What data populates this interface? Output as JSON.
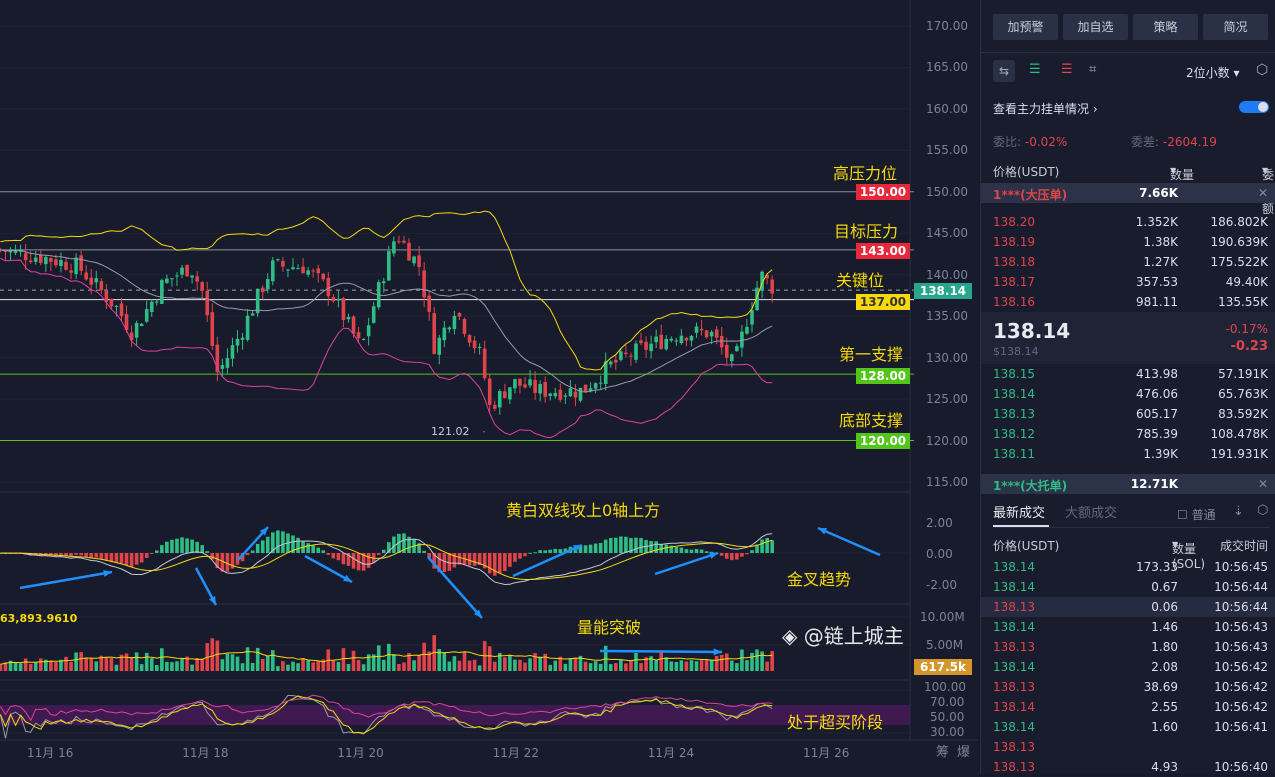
{
  "chart": {
    "price_axis": [
      "170.00",
      "165.00",
      "160.00",
      "155.00",
      "150.00",
      "145.00",
      "140.00",
      "135.00",
      "130.00",
      "125.00",
      "120.00",
      "115.00"
    ],
    "price_ticks": [
      170,
      165,
      160,
      155,
      150,
      145,
      140,
      135,
      130,
      125,
      120,
      115
    ],
    "date_labels": [
      "11月 16",
      "11月 18",
      "11月 20",
      "11月 22",
      "11月 24",
      "11月 26"
    ],
    "date_days": [
      16,
      18,
      20,
      22,
      24,
      26
    ],
    "levels": [
      {
        "price": 150,
        "label": "150.00",
        "note": "高压力位",
        "color": "#e8283a"
      },
      {
        "price": 143,
        "label": "143.00",
        "note": "目标压力",
        "color": "#e8283a"
      },
      {
        "price": 137,
        "label": "137.00",
        "note": "关键位",
        "color": "#f5d90a"
      },
      {
        "price": 128,
        "label": "128.00",
        "note": "第一支撑",
        "color": "#52c41a"
      },
      {
        "price": 120,
        "label": "120.00",
        "note": "底部支撑",
        "color": "#52c41a"
      }
    ],
    "last_price": "138.14",
    "last_price_value": 138.14,
    "low_marker": "121.02",
    "price_waypoints": [
      [
        15.4,
        143
      ],
      [
        16.0,
        142
      ],
      [
        16.4,
        141
      ],
      [
        16.9,
        136
      ],
      [
        17.1,
        133
      ],
      [
        17.5,
        139
      ],
      [
        17.85,
        141
      ],
      [
        18.0,
        138
      ],
      [
        18.2,
        128
      ],
      [
        18.5,
        133
      ],
      [
        18.9,
        141
      ],
      [
        19.3,
        141
      ],
      [
        19.65,
        138
      ],
      [
        20.05,
        131
      ],
      [
        20.2,
        136
      ],
      [
        20.5,
        145
      ],
      [
        20.8,
        141
      ],
      [
        21.0,
        131
      ],
      [
        21.25,
        136
      ],
      [
        21.6,
        130
      ],
      [
        21.7,
        124
      ],
      [
        22.0,
        127
      ],
      [
        22.35,
        126
      ],
      [
        22.9,
        126
      ],
      [
        23.25,
        129
      ],
      [
        23.65,
        131
      ],
      [
        24.15,
        133
      ],
      [
        24.55,
        133
      ],
      [
        24.85,
        129
      ],
      [
        25.0,
        134
      ],
      [
        25.2,
        140
      ],
      [
        25.4,
        138
      ]
    ],
    "macd_axis": [
      "2.00",
      "0.00",
      "-2.00"
    ],
    "volume_axis": [
      "10.00M",
      "5.00M"
    ],
    "volume_value": "617.5k",
    "volume_ma_label": "63,893.9610",
    "rsi_axis": [
      "100.00",
      "70.00",
      "50.00",
      "30.00"
    ],
    "annotations": {
      "macd": "黄白双线攻上0轴上方",
      "golden": "金叉趋势",
      "volume": "量能突破",
      "rsi": "处于超买阶段"
    },
    "corner": [
      "筹",
      "爆"
    ]
  },
  "side": {
    "buttons": [
      "加预警",
      "加自选",
      "策略",
      "简况"
    ],
    "decimals": "2位小数",
    "main_orders": "查看主力挂单情况",
    "ratio_label": "委比:",
    "ratio": "-0.02%",
    "diff_label": "委差:",
    "diff": "-2604.19",
    "cols": [
      "价格(USDT)",
      "数量 (SOL)",
      "委托额"
    ],
    "big_ask": {
      "label": "1***(大压单)",
      "qty": "7.66K"
    },
    "asks": [
      [
        "138.20",
        "1.352K",
        "186.802K"
      ],
      [
        "138.19",
        "1.38K",
        "190.639K"
      ],
      [
        "138.18",
        "1.27K",
        "175.522K"
      ],
      [
        "138.17",
        "357.53",
        "49.40K"
      ],
      [
        "138.16",
        "981.11",
        "135.55K"
      ]
    ],
    "mid": {
      "price": "138.14",
      "usd": "$138.14",
      "pct": "-0.17%",
      "chg": "-0.23"
    },
    "bids": [
      [
        "138.15",
        "413.98",
        "57.191K"
      ],
      [
        "138.14",
        "476.06",
        "65.763K"
      ],
      [
        "138.13",
        "605.17",
        "83.592K"
      ],
      [
        "138.12",
        "785.39",
        "108.478K"
      ],
      [
        "138.11",
        "1.39K",
        "191.931K"
      ]
    ],
    "big_bid": {
      "label": "1***(大托单)",
      "qty": "12.71K"
    },
    "tabs": [
      "最新成交",
      "大额成交"
    ],
    "normal": "普通",
    "trade_cols": [
      "价格(USDT)",
      "数量(SOL)",
      "成交时间"
    ],
    "trades": [
      [
        "138.14",
        "173.33",
        "10:56:45",
        "g"
      ],
      [
        "138.14",
        "0.67",
        "10:56:44",
        "g"
      ],
      [
        "138.13",
        "0.06",
        "10:56:44",
        "r"
      ],
      [
        "138.14",
        "1.46",
        "10:56:43",
        "g"
      ],
      [
        "138.13",
        "1.80",
        "10:56:43",
        "r"
      ],
      [
        "138.14",
        "2.08",
        "10:56:42",
        "g"
      ],
      [
        "138.13",
        "38.69",
        "10:56:42",
        "r"
      ],
      [
        "138.14",
        "2.55",
        "10:56:42",
        "r"
      ],
      [
        "138.14",
        "1.60",
        "10:56:41",
        "g"
      ],
      [
        "138.13",
        "",
        "",
        "r"
      ],
      [
        "138.13",
        "4.93",
        "10:56:40",
        "r"
      ]
    ],
    "watermark": "@链上城主"
  },
  "colors": {
    "up": "#2ebd85",
    "down": "#e0444b",
    "accent": "#f5d90a",
    "arrow": "#1e90ff"
  }
}
